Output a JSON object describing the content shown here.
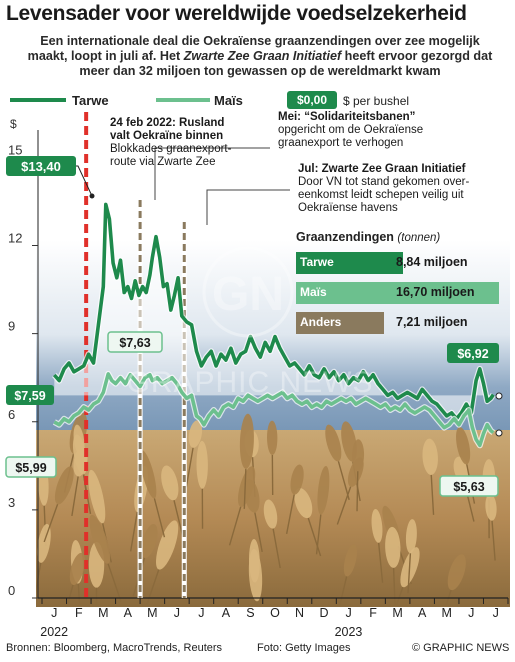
{
  "title": "Levensader voor wereldwijde voedselzekerheid",
  "subtitle_1": "Een internationale deal die Oekraïense graanzendingen over zee mogelijk",
  "subtitle_2": "maakt, loopt in juli af. Het",
  "subtitle_italic": "Zwarte Zee Graan Initiatief",
  "subtitle_3": "heeft ervoor gezorgd dat",
  "subtitle_4": "meer dan 32 miljoen ton gewassen op de wereldmarkt kwam",
  "legend": {
    "tarwe": "Tarwe",
    "mais": "Maïs",
    "unit_sample": "$0,00",
    "unit_label": "$ per bushel"
  },
  "annotations": {
    "invasion_title": "24 feb 2022: Rusland valt Oekraïne binnen",
    "invasion_title_1": "24 feb 2022: Rusland",
    "invasion_title_2": "valt Oekraïne binnen",
    "invasion_body_1": "Blokkades graanexport-",
    "invasion_body_2": "route via Zwarte Zee",
    "may_title": "Mei: “Solidariteitsbanen”",
    "may_body_1": "opgericht om de Oekraïense",
    "may_body_2": "graanexport te verhogen",
    "jul_title": "Jul: Zwarte Zee Graan Initiatief",
    "jul_body_1": "Door VN tot stand gekomen over-",
    "jul_body_2": "eenkomst leidt schepen veilig uit",
    "jul_body_3": "Oekraïense havens"
  },
  "shipments": {
    "title": "Graanzendingen",
    "unit": "(tonnen)",
    "rows": [
      {
        "label": "Tarwe",
        "value_text": "8,84 miljoen",
        "value": 8.84,
        "color": "#1e8a4c"
      },
      {
        "label": "Maïs",
        "value_text": "16,70 miljoen",
        "value": 16.7,
        "color": "#6cc08e"
      },
      {
        "label": "Anders",
        "value_text": "7,21 miljoen",
        "value": 7.21,
        "color": "#8a7a5e"
      }
    ]
  },
  "value_labels": {
    "wheat_start": "$7,59",
    "wheat_peak": "$13,40",
    "wheat_end": "$6,92",
    "corn_start": "$5,99",
    "corn_peak": "$7,63",
    "corn_end": "$5,63"
  },
  "footer": {
    "sources": "Bronnen: Bloomberg, MacroTrends, Reuters",
    "photo": "Foto: Getty Images",
    "credit": "© GRAPHIC NEWS"
  },
  "watermark": "GRAPHIC NEWS",
  "colors": {
    "tarwe": "#1e8a4c",
    "mais": "#6cc08e",
    "invasion": "#e0302a",
    "event": "#8a7a5e"
  },
  "chart_data": {
    "type": "line",
    "unit": "$ per bushel",
    "yticks": [
      0,
      3,
      6,
      9,
      12,
      15
    ],
    "ytick_labels": [
      "0",
      "3",
      "6",
      "9",
      "12",
      "15"
    ],
    "ylim": [
      0,
      16
    ],
    "grid": false,
    "legend_position": "top-left",
    "x_month_labels": [
      "J",
      "F",
      "M",
      "A",
      "M",
      "J",
      "J",
      "A",
      "S",
      "O",
      "N",
      "D",
      "J",
      "F",
      "M",
      "A",
      "M",
      "J",
      "J"
    ],
    "year_labels": [
      {
        "label": "2022",
        "month_index": 0
      },
      {
        "label": "2023",
        "month_index": 12
      }
    ],
    "events": [
      {
        "month": 1.8,
        "type": "invasion"
      },
      {
        "month": 4.0,
        "type": "event"
      },
      {
        "month": 5.8,
        "type": "event"
      }
    ],
    "series": [
      {
        "name": "Tarwe",
        "color": "#1e8a4c",
        "points": [
          [
            0,
            7.59
          ],
          [
            0.2,
            7.4
          ],
          [
            0.4,
            7.8
          ],
          [
            0.6,
            8.0
          ],
          [
            0.8,
            7.7
          ],
          [
            1.0,
            7.8
          ],
          [
            1.2,
            7.9
          ],
          [
            1.4,
            8.3
          ],
          [
            1.6,
            8.0
          ],
          [
            1.8,
            9.3
          ],
          [
            2.0,
            10.6
          ],
          [
            2.1,
            13.4
          ],
          [
            2.25,
            12.9
          ],
          [
            2.4,
            11.4
          ],
          [
            2.55,
            10.9
          ],
          [
            2.7,
            11.5
          ],
          [
            2.85,
            10.4
          ],
          [
            3.0,
            10.6
          ],
          [
            3.15,
            10.2
          ],
          [
            3.3,
            10.8
          ],
          [
            3.45,
            10.3
          ],
          [
            3.6,
            10.6
          ],
          [
            3.75,
            10.4
          ],
          [
            3.9,
            11.0
          ],
          [
            4.0,
            11.6
          ],
          [
            4.15,
            12.3
          ],
          [
            4.3,
            11.6
          ],
          [
            4.45,
            10.6
          ],
          [
            4.6,
            10.7
          ],
          [
            4.75,
            9.8
          ],
          [
            4.9,
            10.3
          ],
          [
            5.05,
            10.9
          ],
          [
            5.2,
            9.6
          ],
          [
            5.4,
            9.4
          ],
          [
            5.6,
            9.3
          ],
          [
            5.8,
            8.4
          ],
          [
            6.0,
            7.9
          ],
          [
            6.2,
            8.2
          ],
          [
            6.4,
            8.4
          ],
          [
            6.6,
            7.9
          ],
          [
            6.8,
            8.3
          ],
          [
            7.0,
            8.1
          ],
          [
            7.2,
            8.5
          ],
          [
            7.4,
            8.0
          ],
          [
            7.6,
            8.3
          ],
          [
            7.8,
            8.4
          ],
          [
            8.0,
            8.9
          ],
          [
            8.2,
            8.5
          ],
          [
            8.4,
            8.2
          ],
          [
            8.6,
            8.7
          ],
          [
            8.8,
            8.4
          ],
          [
            9.0,
            8.9
          ],
          [
            9.2,
            8.5
          ],
          [
            9.4,
            8.2
          ],
          [
            9.6,
            7.9
          ],
          [
            9.8,
            8.0
          ],
          [
            10.0,
            7.8
          ],
          [
            10.2,
            7.6
          ],
          [
            10.4,
            7.9
          ],
          [
            10.6,
            7.6
          ],
          [
            10.8,
            7.5
          ],
          [
            11.0,
            7.8
          ],
          [
            11.2,
            7.5
          ],
          [
            11.4,
            7.7
          ],
          [
            11.6,
            7.4
          ],
          [
            11.8,
            7.6
          ],
          [
            12.0,
            7.3
          ],
          [
            12.2,
            7.5
          ],
          [
            12.4,
            7.4
          ],
          [
            12.6,
            7.7
          ],
          [
            12.8,
            7.4
          ],
          [
            13.0,
            7.6
          ],
          [
            13.2,
            7.3
          ],
          [
            13.4,
            7.1
          ],
          [
            13.6,
            6.9
          ],
          [
            13.8,
            7.0
          ],
          [
            14.0,
            6.8
          ],
          [
            14.2,
            6.9
          ],
          [
            14.4,
            7.0
          ],
          [
            14.6,
            6.9
          ],
          [
            14.8,
            6.8
          ],
          [
            15.0,
            7.1
          ],
          [
            15.2,
            6.9
          ],
          [
            15.4,
            6.7
          ],
          [
            15.6,
            6.6
          ],
          [
            15.8,
            6.4
          ],
          [
            16.0,
            6.2
          ],
          [
            16.2,
            6.3
          ],
          [
            16.4,
            6.1
          ],
          [
            16.6,
            6.3
          ],
          [
            16.8,
            6.6
          ],
          [
            17.0,
            6.3
          ],
          [
            17.2,
            7.4
          ],
          [
            17.35,
            7.8
          ],
          [
            17.5,
            7.3
          ],
          [
            17.65,
            6.7
          ],
          [
            17.8,
            6.8
          ],
          [
            17.9,
            6.92
          ]
        ]
      },
      {
        "name": "Maïs",
        "color": "#6cc08e",
        "points": [
          [
            0,
            5.99
          ],
          [
            0.2,
            5.9
          ],
          [
            0.4,
            6.1
          ],
          [
            0.6,
            6.0
          ],
          [
            0.8,
            6.2
          ],
          [
            1.0,
            6.3
          ],
          [
            1.2,
            6.5
          ],
          [
            1.4,
            6.4
          ],
          [
            1.6,
            6.6
          ],
          [
            1.8,
            6.7
          ],
          [
            2.0,
            7.0
          ],
          [
            2.2,
            7.63
          ],
          [
            2.35,
            7.4
          ],
          [
            2.5,
            7.3
          ],
          [
            2.7,
            7.5
          ],
          [
            2.9,
            7.3
          ],
          [
            3.1,
            7.6
          ],
          [
            3.3,
            7.4
          ],
          [
            3.5,
            7.2
          ],
          [
            3.7,
            7.5
          ],
          [
            3.9,
            7.6
          ],
          [
            4.0,
            7.4
          ],
          [
            4.2,
            7.5
          ],
          [
            4.4,
            7.3
          ],
          [
            4.6,
            7.4
          ],
          [
            4.8,
            7.5
          ],
          [
            5.0,
            7.3
          ],
          [
            5.2,
            7.0
          ],
          [
            5.4,
            6.8
          ],
          [
            5.6,
            6.9
          ],
          [
            5.8,
            6.2
          ],
          [
            5.95,
            6.1
          ],
          [
            6.1,
            5.9
          ],
          [
            6.3,
            6.2
          ],
          [
            6.5,
            6.4
          ],
          [
            6.7,
            6.2
          ],
          [
            6.9,
            6.5
          ],
          [
            7.1,
            6.6
          ],
          [
            7.3,
            6.5
          ],
          [
            7.5,
            6.8
          ],
          [
            7.7,
            6.7
          ],
          [
            7.9,
            6.9
          ],
          [
            8.1,
            6.8
          ],
          [
            8.3,
            6.7
          ],
          [
            8.5,
            6.8
          ],
          [
            8.7,
            6.9
          ],
          [
            8.9,
            6.8
          ],
          [
            9.1,
            6.9
          ],
          [
            9.3,
            7.0
          ],
          [
            9.5,
            6.8
          ],
          [
            9.7,
            6.9
          ],
          [
            9.9,
            6.7
          ],
          [
            10.1,
            6.6
          ],
          [
            10.3,
            6.7
          ],
          [
            10.5,
            6.5
          ],
          [
            10.7,
            6.6
          ],
          [
            10.9,
            6.5
          ],
          [
            11.1,
            6.7
          ],
          [
            11.3,
            6.6
          ],
          [
            11.5,
            6.7
          ],
          [
            11.7,
            6.8
          ],
          [
            11.9,
            6.7
          ],
          [
            12.1,
            6.8
          ],
          [
            12.3,
            6.6
          ],
          [
            12.5,
            6.7
          ],
          [
            12.7,
            6.8
          ],
          [
            12.9,
            6.7
          ],
          [
            13.1,
            6.6
          ],
          [
            13.3,
            6.5
          ],
          [
            13.5,
            6.6
          ],
          [
            13.7,
            6.4
          ],
          [
            13.9,
            6.5
          ],
          [
            14.1,
            6.4
          ],
          [
            14.3,
            6.6
          ],
          [
            14.5,
            6.4
          ],
          [
            14.7,
            6.3
          ],
          [
            14.9,
            6.4
          ],
          [
            15.1,
            6.5
          ],
          [
            15.3,
            6.4
          ],
          [
            15.5,
            6.2
          ],
          [
            15.7,
            6.0
          ],
          [
            15.9,
            5.8
          ],
          [
            16.1,
            5.9
          ],
          [
            16.3,
            6.1
          ],
          [
            16.5,
            5.9
          ],
          [
            16.7,
            6.2
          ],
          [
            16.9,
            6.4
          ],
          [
            17.05,
            5.8
          ],
          [
            17.2,
            5.4
          ],
          [
            17.35,
            5.2
          ],
          [
            17.5,
            5.6
          ],
          [
            17.65,
            5.9
          ],
          [
            17.8,
            5.7
          ],
          [
            17.9,
            5.63
          ]
        ]
      }
    ]
  }
}
